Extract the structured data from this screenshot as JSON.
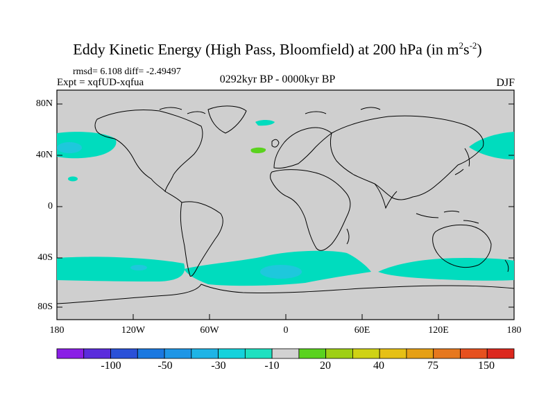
{
  "title": {
    "main": "Eddy Kinetic Energy (High Pass, Bloomfield) at 200 hPa (in m",
    "sup1": "2",
    "mid": "s",
    "sup2": "-2",
    "end": ")"
  },
  "stats": "rmsd= 6.108 diff= -2.49497",
  "experiment": "Expt = xqfUD-xqfua",
  "period": "0292kyr BP - 0000kyr BP",
  "season": "DJF",
  "lat_labels": [
    "80N",
    "40N",
    "0",
    "40S",
    "80S"
  ],
  "lon_labels": [
    "180",
    "120W",
    "60W",
    "0",
    "60E",
    "120E",
    "180"
  ],
  "colorbar": {
    "colors": [
      "#8a1ee6",
      "#5a2cdc",
      "#2a50d8",
      "#1a78e0",
      "#1e96e6",
      "#1eb4e6",
      "#14d2dc",
      "#1ee0c0",
      "#d2d2d2",
      "#5ad21e",
      "#9ecf14",
      "#cfd214",
      "#e6c014",
      "#e6a014",
      "#e6781e",
      "#e6501e",
      "#dc281e"
    ],
    "labels": [
      "-100",
      "-50",
      "-30",
      "-10",
      "20",
      "40",
      "75",
      "150"
    ]
  },
  "map_colors": {
    "ocean_fill": "#cfcfcf",
    "anomaly_cyan": "#00dcbe",
    "anomaly_light": "#1ec8dc",
    "anomaly_green": "#5ad21e"
  }
}
